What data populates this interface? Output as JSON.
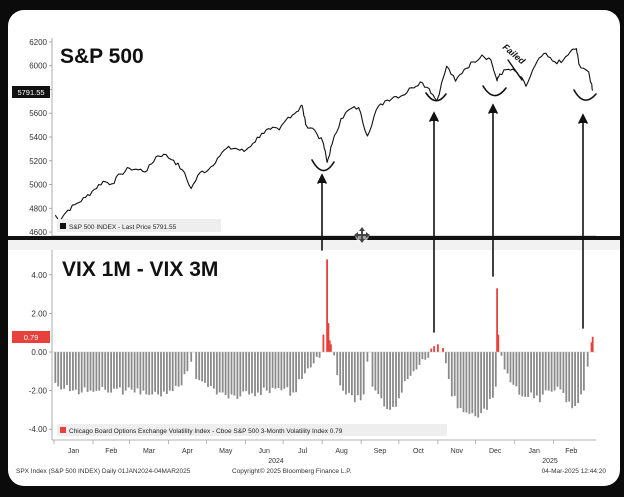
{
  "chart_data": [
    {
      "type": "line",
      "title": "S&P 500",
      "legend": "S&P 500 INDEX - Last Price 5791.55",
      "last_price_label": "5791.55",
      "yticks": [
        4600,
        4800,
        5000,
        5200,
        5400,
        5600,
        5800,
        6000,
        6200
      ],
      "ylim": [
        4550,
        6250
      ],
      "x": [
        "2024-01-02",
        "2024-01-05",
        "2024-01-12",
        "2024-01-19",
        "2024-01-26",
        "2024-02-02",
        "2024-02-09",
        "2024-02-16",
        "2024-02-23",
        "2024-03-01",
        "2024-03-08",
        "2024-03-15",
        "2024-03-22",
        "2024-03-28",
        "2024-04-05",
        "2024-04-12",
        "2024-04-19",
        "2024-04-26",
        "2024-05-03",
        "2024-05-10",
        "2024-05-17",
        "2024-05-24",
        "2024-05-31",
        "2024-06-07",
        "2024-06-14",
        "2024-06-21",
        "2024-06-28",
        "2024-07-05",
        "2024-07-12",
        "2024-07-16",
        "2024-07-19",
        "2024-07-26",
        "2024-08-02",
        "2024-08-05",
        "2024-08-09",
        "2024-08-16",
        "2024-08-23",
        "2024-08-30",
        "2024-09-06",
        "2024-09-13",
        "2024-09-20",
        "2024-09-27",
        "2024-10-04",
        "2024-10-11",
        "2024-10-18",
        "2024-10-25",
        "2024-10-31",
        "2024-11-08",
        "2024-11-15",
        "2024-11-22",
        "2024-11-29",
        "2024-12-06",
        "2024-12-13",
        "2024-12-18",
        "2024-12-20",
        "2024-12-27",
        "2025-01-03",
        "2025-01-10",
        "2025-01-17",
        "2025-01-24",
        "2025-01-31",
        "2025-02-07",
        "2025-02-14",
        "2025-02-19",
        "2025-02-21",
        "2025-02-28",
        "2025-03-03",
        "2025-03-04"
      ],
      "values": [
        4742,
        4697,
        4784,
        4840,
        4891,
        4959,
        5027,
        5006,
        5089,
        5137,
        5124,
        5117,
        5234,
        5254,
        5204,
        5123,
        4967,
        5100,
        5128,
        5223,
        5303,
        5305,
        5278,
        5347,
        5431,
        5465,
        5460,
        5567,
        5615,
        5667,
        5505,
        5459,
        5346,
        5186,
        5344,
        5554,
        5634,
        5648,
        5408,
        5627,
        5703,
        5738,
        5751,
        5815,
        5864,
        5808,
        5705,
        5996,
        5870,
        5969,
        6032,
        6090,
        6051,
        5872,
        5930,
        5970,
        5942,
        5827,
        5997,
        6101,
        6040,
        6026,
        6115,
        6144,
        6013,
        5955,
        5849,
        5791
      ]
    },
    {
      "type": "bar",
      "title": "VIX 1M - VIX 3M",
      "legend": "Chicago Board Options Exchange Volatility Index - Cboe S&P 500 3-Month Volatility Index 0.79",
      "last_value_label": "0.79",
      "yticks": [
        "4.00",
        "2.00",
        "0.00",
        "-2.00",
        "-4.00"
      ],
      "ylim": [
        -4.5,
        5.6
      ],
      "x": [
        "2024-01-02",
        "2024-01-09",
        "2024-01-16",
        "2024-01-23",
        "2024-01-30",
        "2024-02-06",
        "2024-02-13",
        "2024-02-20",
        "2024-02-27",
        "2024-03-05",
        "2024-03-12",
        "2024-03-19",
        "2024-03-26",
        "2024-04-02",
        "2024-04-09",
        "2024-04-16",
        "2024-04-19",
        "2024-04-23",
        "2024-04-30",
        "2024-05-07",
        "2024-05-14",
        "2024-05-21",
        "2024-05-28",
        "2024-06-04",
        "2024-06-11",
        "2024-06-18",
        "2024-06-25",
        "2024-07-02",
        "2024-07-09",
        "2024-07-16",
        "2024-07-23",
        "2024-07-30",
        "2024-08-02",
        "2024-08-05",
        "2024-08-06",
        "2024-08-07",
        "2024-08-08",
        "2024-08-13",
        "2024-08-20",
        "2024-08-27",
        "2024-09-03",
        "2024-09-06",
        "2024-09-10",
        "2024-09-17",
        "2024-09-24",
        "2024-10-01",
        "2024-10-08",
        "2024-10-15",
        "2024-10-22",
        "2024-10-29",
        "2024-11-01",
        "2024-11-05",
        "2024-11-12",
        "2024-11-19",
        "2024-11-26",
        "2024-12-03",
        "2024-12-10",
        "2024-12-17",
        "2024-12-18",
        "2024-12-19",
        "2024-12-24",
        "2024-12-31",
        "2025-01-07",
        "2025-01-14",
        "2025-01-21",
        "2025-01-28",
        "2025-02-04",
        "2025-02-11",
        "2025-02-18",
        "2025-02-25",
        "2025-03-03",
        "2025-03-04"
      ],
      "values": [
        -1.6,
        -1.9,
        -2.0,
        -2.1,
        -2.0,
        -2.0,
        -2.1,
        -1.9,
        -2.0,
        -2.1,
        -2.0,
        -2.2,
        -2.3,
        -2.0,
        -1.8,
        -1.0,
        -0.5,
        -1.4,
        -1.6,
        -1.9,
        -2.1,
        -2.2,
        -2.3,
        -2.2,
        -2.1,
        -2.0,
        -1.9,
        -1.9,
        -2.1,
        -1.4,
        -0.8,
        -0.3,
        0.9,
        4.8,
        1.5,
        0.6,
        0.4,
        -1.2,
        -2.2,
        -2.6,
        -2.2,
        -0.5,
        -1.8,
        -2.4,
        -3.0,
        -2.4,
        -1.4,
        -0.9,
        -0.4,
        0.3,
        0.4,
        0.2,
        -2.3,
        -2.9,
        -3.2,
        -3.4,
        -3.0,
        -1.8,
        3.3,
        0.9,
        -0.9,
        -1.7,
        -2.3,
        -2.1,
        -2.6,
        -2.0,
        -1.8,
        -2.6,
        -2.8,
        -2.0,
        0.5,
        0.79
      ]
    }
  ],
  "annotations": {
    "failed_label": "Failed"
  },
  "time_axis": {
    "months": [
      "Jan",
      "Feb",
      "Mar",
      "Apr",
      "May",
      "Jun",
      "Jul",
      "Aug",
      "Sep",
      "Oct",
      "Nov",
      "Dec",
      "Jan",
      "Feb"
    ],
    "year_2024": "2024",
    "year_2025": "2025"
  },
  "footer": {
    "left": "SPX Index (S&P 500 INDEX) Daily 01JAN2024-04MAR2025",
    "center": "Copyright© 2025 Bloomberg Finance L.P.",
    "right": "04-Mar-2025 12:44:20"
  },
  "colors": {
    "positive_bar": "#e8403a",
    "negative_bar": "#8a8a8a",
    "price_line": "#111111",
    "background": "#0b0b0b",
    "panel": "#ffffff"
  },
  "icons": [
    "move-cursor-icon"
  ]
}
